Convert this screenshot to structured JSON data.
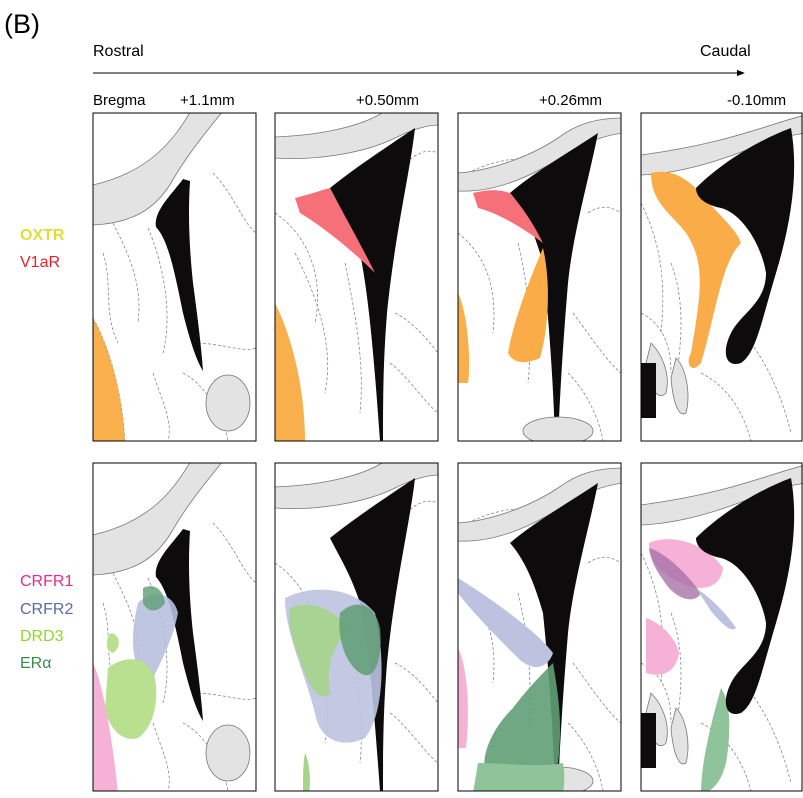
{
  "header": {
    "panel_label": "(B)"
  },
  "axis": {
    "rostral": "Rostral",
    "caudal": "Caudal"
  },
  "sections": {
    "bregma": "Bregma",
    "levels": [
      "+1.1mm",
      "+0.50mm",
      "+0.26mm",
      "-0.10mm"
    ]
  },
  "top_row": {
    "labels": [
      "OXTR",
      "V1aR"
    ]
  },
  "bottom_row": {
    "labels": [
      "CRFR1",
      "CRFR2",
      "DRD3",
      "ERα"
    ]
  }
}
